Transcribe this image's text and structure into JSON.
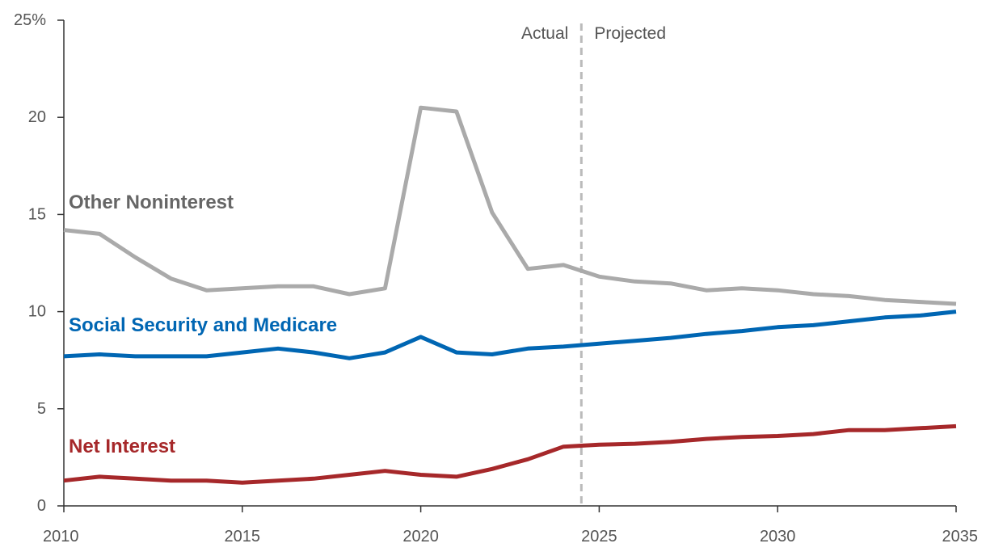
{
  "chart_data": {
    "type": "line",
    "title": "",
    "xlabel": "",
    "ylabel": "",
    "xlim": [
      2010,
      2035
    ],
    "ylim": [
      0,
      25
    ],
    "x_ticks": [
      {
        "value": 2010,
        "label": "2010"
      },
      {
        "value": 2015,
        "label": "2015"
      },
      {
        "value": 2020,
        "label": "2020"
      },
      {
        "value": 2025,
        "label": "2025"
      },
      {
        "value": 2030,
        "label": "2030"
      },
      {
        "value": 2035,
        "label": "2035"
      }
    ],
    "y_ticks": [
      {
        "value": 0,
        "label": "0"
      },
      {
        "value": 5,
        "label": "5"
      },
      {
        "value": 10,
        "label": "10"
      },
      {
        "value": 15,
        "label": "15"
      },
      {
        "value": 20,
        "label": "20"
      },
      {
        "value": 25,
        "label": "25%"
      }
    ],
    "grid": false,
    "divider": {
      "x": 2024.5,
      "left_label": "Actual",
      "right_label": "Projected"
    },
    "x": [
      2010,
      2011,
      2012,
      2013,
      2014,
      2015,
      2016,
      2017,
      2018,
      2019,
      2020,
      2021,
      2022,
      2023,
      2024,
      2025,
      2026,
      2027,
      2028,
      2029,
      2030,
      2031,
      2032,
      2033,
      2034,
      2035
    ],
    "series": [
      {
        "name": "Other Noninterest",
        "label": "Other Noninterest",
        "color": "#aaaaaa",
        "label_color": "#666666",
        "values": [
          14.2,
          14.0,
          12.8,
          11.7,
          11.1,
          11.2,
          11.3,
          11.3,
          10.9,
          11.2,
          20.5,
          20.3,
          15.1,
          12.2,
          12.4,
          11.8,
          11.55,
          11.45,
          11.1,
          11.2,
          11.1,
          10.9,
          10.8,
          10.6,
          10.5,
          10.4
        ]
      },
      {
        "name": "Social Security and Medicare",
        "label": "Social Security and Medicare",
        "color": "#0066b3",
        "label_color": "#0066b3",
        "values": [
          7.7,
          7.8,
          7.7,
          7.7,
          7.7,
          7.9,
          8.1,
          7.9,
          7.6,
          7.9,
          8.7,
          7.9,
          7.8,
          8.1,
          8.2,
          8.35,
          8.5,
          8.65,
          8.85,
          9.0,
          9.2,
          9.3,
          9.5,
          9.7,
          9.8,
          10.0
        ]
      },
      {
        "name": "Net Interest",
        "label": "Net Interest",
        "color": "#a6282a",
        "label_color": "#a6282a",
        "values": [
          1.3,
          1.5,
          1.4,
          1.3,
          1.3,
          1.2,
          1.3,
          1.4,
          1.6,
          1.8,
          1.6,
          1.5,
          1.9,
          2.4,
          3.05,
          3.15,
          3.2,
          3.3,
          3.45,
          3.55,
          3.6,
          3.7,
          3.9,
          3.9,
          4.0,
          4.1
        ]
      }
    ]
  }
}
